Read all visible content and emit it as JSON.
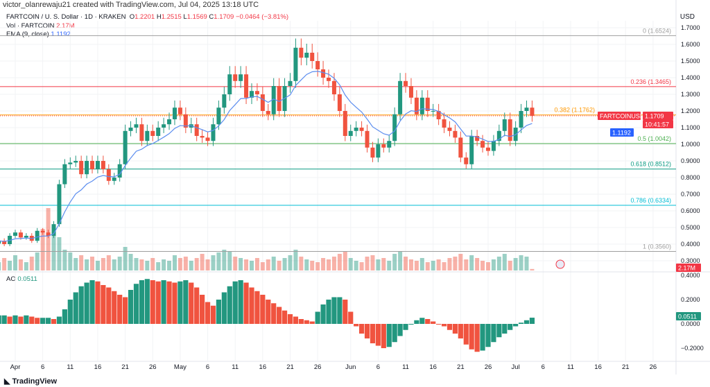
{
  "credit": "victor_olanrewaju21 created with TradingView.com, Jul 04, 2025 13:18 UTC",
  "legend": {
    "symbol": "FARTCOIN / U. S. Dollar · 1D · KRAKEN",
    "o_label": "O",
    "o": "1.2201",
    "h_label": "H",
    "h": "1.2515",
    "l_label": "L",
    "l": "1.1569",
    "c_label": "C",
    "c": "1.1709",
    "change": "−0.0464 (−3.81%)",
    "vol_label": "Vol · FARTCOIN",
    "vol": "2.17M",
    "ema_label": "EMA (9, close)",
    "ema": "1.1192",
    "ao_label": "AO",
    "ao": "0.0511"
  },
  "currency": "USD",
  "badges": {
    "symbol": "FARTCOINUSD",
    "price": "1.1709",
    "countdown": "10:41:57",
    "ema": "1.1192",
    "vol": "2.17M",
    "ao": "0.0511",
    "level_above": "1.2000"
  },
  "brand": "TradingView",
  "colors": {
    "up": "#22977f",
    "down": "#f0533f",
    "ema": "#5b8def"
  },
  "chart_data": {
    "type": "candlestick",
    "title": "FARTCOIN / U. S. Dollar · 1D · KRAKEN",
    "start_date": "2025-03-29",
    "closes": [
      0.42,
      0.4,
      0.45,
      0.47,
      0.44,
      0.45,
      0.42,
      0.48,
      0.47,
      0.45,
      0.52,
      0.76,
      0.88,
      0.89,
      0.9,
      0.82,
      0.9,
      0.85,
      0.9,
      0.85,
      0.78,
      0.8,
      0.88,
      1.08,
      1.1,
      1.12,
      1.02,
      1.08,
      1.05,
      1.1,
      1.12,
      1.15,
      1.22,
      1.18,
      1.1,
      1.12,
      1.05,
      1.04,
      1.02,
      1.12,
      1.22,
      1.3,
      1.42,
      1.38,
      1.42,
      1.28,
      1.32,
      1.3,
      1.2,
      1.18,
      1.35,
      1.2,
      1.35,
      1.38,
      1.58,
      1.52,
      1.55,
      1.5,
      1.45,
      1.4,
      1.38,
      1.3,
      1.2,
      1.05,
      1.08,
      1.1,
      1.08,
      0.98,
      0.92,
      1.0,
      0.98,
      1.02,
      1.18,
      1.38,
      1.35,
      1.28,
      1.18,
      1.28,
      1.2,
      1.2,
      1.15,
      1.1,
      1.08,
      1.04,
      0.92,
      0.88,
      1.05,
      1.02,
      0.98,
      0.96,
      1.02,
      1.08,
      1.15,
      1.02,
      1.1,
      1.2,
      1.22,
      1.1709
    ],
    "volumes_m": [
      12,
      18,
      14,
      22,
      16,
      12,
      20,
      26,
      60,
      90,
      55,
      48,
      30,
      26,
      18,
      22,
      16,
      20,
      14,
      18,
      22,
      16,
      20,
      34,
      24,
      18,
      16,
      14,
      18,
      12,
      16,
      14,
      22,
      18,
      20,
      14,
      18,
      24,
      16,
      22,
      26,
      30,
      28,
      20,
      18,
      16,
      14,
      18,
      12,
      16,
      20,
      14,
      18,
      22,
      30,
      20,
      16,
      14,
      12,
      18,
      16,
      20,
      24,
      28,
      18,
      14,
      12,
      20,
      22,
      16,
      18,
      14,
      24,
      28,
      20,
      16,
      14,
      18,
      12,
      14,
      16,
      12,
      18,
      20,
      24,
      16,
      22,
      18,
      14,
      12,
      16,
      20,
      24,
      14,
      18,
      22,
      20,
      2.17
    ],
    "ao": [
      0.07,
      0.07,
      0.06,
      0.07,
      0.06,
      0.07,
      0.06,
      0.05,
      0.05,
      0.05,
      0.04,
      0.06,
      0.12,
      0.2,
      0.26,
      0.31,
      0.34,
      0.36,
      0.35,
      0.32,
      0.3,
      0.27,
      0.24,
      0.22,
      0.28,
      0.33,
      0.36,
      0.37,
      0.36,
      0.35,
      0.36,
      0.35,
      0.34,
      0.35,
      0.36,
      0.34,
      0.3,
      0.24,
      0.18,
      0.15,
      0.2,
      0.26,
      0.31,
      0.35,
      0.36,
      0.34,
      0.3,
      0.27,
      0.24,
      0.2,
      0.17,
      0.14,
      0.11,
      0.08,
      0.06,
      0.04,
      0.03,
      0.02,
      0.1,
      0.16,
      0.2,
      0.22,
      0.22,
      0.2,
      0.1,
      -0.02,
      -0.08,
      -0.12,
      -0.16,
      -0.18,
      -0.2,
      -0.19,
      -0.15,
      -0.1,
      -0.05,
      0.0,
      0.03,
      0.05,
      0.04,
      0.02,
      0.0,
      -0.02,
      -0.05,
      -0.08,
      -0.12,
      -0.17,
      -0.21,
      -0.23,
      -0.22,
      -0.19,
      -0.15,
      -0.11,
      -0.08,
      -0.05,
      -0.02,
      0.01,
      0.03,
      0.0511
    ],
    "ylim": [
      0.3,
      1.7
    ],
    "yticks": [
      "1.7000",
      "1.6000",
      "1.5000",
      "1.4000",
      "1.3000",
      "1.2000",
      "1.1000",
      "1.0000",
      "0.9000",
      "0.8000",
      "0.7000",
      "0.6000",
      "0.5000",
      "0.4000",
      "0.3000"
    ],
    "ao_ticks": [
      {
        "v": 0.4,
        "label": "0.4000"
      },
      {
        "v": 0.2,
        "label": "0.2000"
      },
      {
        "v": 0,
        "label": "0.0000"
      },
      {
        "v": -0.2,
        "label": "−0.2000"
      }
    ],
    "fib": [
      {
        "label": "0 (1.6524)",
        "v": 1.6524,
        "color": "#9e9e9e"
      },
      {
        "label": "0.236 (1.3465)",
        "v": 1.3465,
        "color": "#f23645"
      },
      {
        "label": "0.382 (1.1762)",
        "v": 1.1762,
        "color": "#ff9800"
      },
      {
        "label": "0.5 (1.0042)",
        "v": 1.0042,
        "color": "#4caf50"
      },
      {
        "label": "0.618 (0.8512)",
        "v": 0.8512,
        "color": "#089981"
      },
      {
        "label": "0.786 (0.6334)",
        "v": 0.6334,
        "color": "#00bcd4"
      },
      {
        "label": "1 (0.3560)",
        "v": 0.356,
        "color": "#9e9e9e"
      }
    ],
    "xticks": [
      {
        "label": "Apr",
        "d": 3
      },
      {
        "label": "6",
        "d": 8
      },
      {
        "label": "11",
        "d": 13
      },
      {
        "label": "16",
        "d": 18
      },
      {
        "label": "21",
        "d": 23
      },
      {
        "label": "26",
        "d": 28
      },
      {
        "label": "May",
        "d": 33
      },
      {
        "label": "6",
        "d": 38
      },
      {
        "label": "11",
        "d": 43
      },
      {
        "label": "16",
        "d": 48
      },
      {
        "label": "21",
        "d": 53
      },
      {
        "label": "26",
        "d": 58
      },
      {
        "label": "Jun",
        "d": 64
      },
      {
        "label": "6",
        "d": 69
      },
      {
        "label": "11",
        "d": 74
      },
      {
        "label": "16",
        "d": 79
      },
      {
        "label": "21",
        "d": 84
      },
      {
        "label": "26",
        "d": 89
      },
      {
        "label": "Jul",
        "d": 94
      },
      {
        "label": "6",
        "d": 99
      },
      {
        "label": "11",
        "d": 104
      },
      {
        "label": "16",
        "d": 109
      },
      {
        "label": "21",
        "d": 114
      },
      {
        "label": "26",
        "d": 119
      }
    ]
  }
}
